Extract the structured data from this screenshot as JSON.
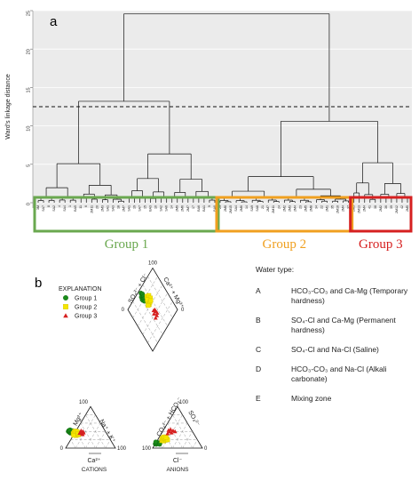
{
  "panel_a": {
    "label": "a",
    "ylabel": "Ward's linkage distance",
    "yticks": [
      "0",
      "5",
      "10",
      "15",
      "20",
      "25"
    ],
    "groups": [
      {
        "name": "Group 1",
        "color": "#6aa84f"
      },
      {
        "name": "Group 2",
        "color": "#f0a020"
      },
      {
        "name": "Group 3",
        "color": "#d62020"
      }
    ]
  },
  "panel_b": {
    "label": "b",
    "explanation": "EXPLANATION",
    "legend": [
      {
        "name": "Group 1",
        "marker": "circle",
        "color": "#1a8c1a"
      },
      {
        "name": "Group 2",
        "marker": "square",
        "color": "#f5e600"
      },
      {
        "name": "Group 3",
        "marker": "triangle",
        "color": "#d62020"
      }
    ],
    "cations_label": "CATIONS",
    "anions_label": "ANIONS",
    "tick_100": "100",
    "tick_0": "0",
    "axis_labels": {
      "mg": "Mg²⁺",
      "na_k": "Na⁺ + K⁺",
      "ca": "Ca²⁺",
      "co3_hco3": "CO₃²⁻ + HCO₃⁻",
      "so4": "SO₄²⁻",
      "cl": "Cl⁻",
      "so4_cl": "SO₄²⁻ + Cl⁻",
      "ca_mg": "Ca²⁺ + Mg²⁺"
    }
  },
  "water_type": {
    "title": "Water type:",
    "rows": [
      {
        "key": "A",
        "desc": "HCO₃-CO₃ and Ca-Mg (Temporary hardness)"
      },
      {
        "key": "B",
        "desc": "SO₄-Cl and Ca-Mg (Permanent hardness)"
      },
      {
        "key": "C",
        "desc": "SO₄-Cl and Na-Cl (Saline)"
      },
      {
        "key": "D",
        "desc": "HCO₃-CO₃ and Na-Cl (Alkali carbonate)"
      },
      {
        "key": "E",
        "desc": "Mixing zone"
      }
    ]
  },
  "chart_data": [
    {
      "type": "dendrogram",
      "title": "",
      "ylabel": "Ward's linkage distance",
      "ylim": [
        0,
        25
      ],
      "cut_height": 13,
      "leaves": [
        "3M",
        "SA7",
        "8",
        "SA2",
        "4",
        "SA4",
        "1",
        "BA5",
        "11",
        "6",
        "2M11",
        "20",
        "2M3",
        "SA1",
        "SA3",
        "18",
        "2M7",
        "SA1",
        "19",
        "SA7",
        "15",
        "BA3",
        "10",
        "SA2",
        "SA6",
        "14",
        "2M9",
        "2M6",
        "2M7",
        "17",
        "BA6",
        "BA1",
        "9",
        "BA8",
        "29",
        "2M8",
        "2M15",
        "SA4",
        "2M6",
        "14",
        "SA9",
        "SA8",
        "21",
        "2M7",
        "2M11",
        "24",
        "2M2",
        "2M3",
        "2M4",
        "23",
        "2M5",
        "2M8",
        "34",
        "22",
        "2M1",
        "35",
        "2M10",
        "2M4",
        "37",
        "2M3",
        "2M13",
        "2M4",
        "41",
        "38",
        "2M2",
        "36",
        "39",
        "2M12",
        "42",
        "2M5"
      ],
      "groups": [
        {
          "name": "Group 1",
          "range": [
            0,
            34
          ],
          "merge_height": 13.2
        },
        {
          "name": "Group 2",
          "range": [
            34,
            59
          ],
          "merge_height": 3.4
        },
        {
          "name": "Group 3",
          "range": [
            59,
            70
          ],
          "merge_height": 5.2
        }
      ],
      "root_height": 24.6
    },
    {
      "type": "piper",
      "title": "",
      "series": [
        {
          "name": "Group 1",
          "cation_points": [
            [
              0.05,
              0.4
            ],
            [
              0.07,
              0.38
            ],
            [
              0.06,
              0.42
            ],
            [
              0.09,
              0.36
            ],
            [
              0.08,
              0.39
            ],
            [
              0.1,
              0.41
            ],
            [
              0.11,
              0.37
            ],
            [
              0.12,
              0.4
            ],
            [
              0.07,
              0.43
            ],
            [
              0.09,
              0.44
            ],
            [
              0.13,
              0.38
            ],
            [
              0.14,
              0.42
            ]
          ],
          "anion_points": [
            [
              0.05,
              0.1
            ],
            [
              0.06,
              0.12
            ],
            [
              0.07,
              0.09
            ],
            [
              0.08,
              0.11
            ],
            [
              0.1,
              0.12
            ],
            [
              0.09,
              0.14
            ],
            [
              0.11,
              0.1
            ],
            [
              0.12,
              0.13
            ],
            [
              0.13,
              0.11
            ],
            [
              0.06,
              0.15
            ],
            [
              0.14,
              0.09
            ],
            [
              0.15,
              0.12
            ]
          ],
          "diamond_points": [
            [
              0.15,
              0.3
            ],
            [
              0.17,
              0.32
            ],
            [
              0.18,
              0.34
            ],
            [
              0.2,
              0.33
            ],
            [
              0.16,
              0.35
            ],
            [
              0.19,
              0.31
            ],
            [
              0.21,
              0.36
            ],
            [
              0.22,
              0.34
            ],
            [
              0.18,
              0.38
            ],
            [
              0.2,
              0.39
            ],
            [
              0.23,
              0.37
            ],
            [
              0.24,
              0.4
            ]
          ]
        },
        {
          "name": "Group 2",
          "cation_points": [
            [
              0.15,
              0.35
            ],
            [
              0.18,
              0.33
            ],
            [
              0.2,
              0.36
            ],
            [
              0.17,
              0.39
            ],
            [
              0.22,
              0.34
            ],
            [
              0.24,
              0.37
            ],
            [
              0.19,
              0.41
            ],
            [
              0.21,
              0.3
            ],
            [
              0.26,
              0.32
            ],
            [
              0.16,
              0.31
            ],
            [
              0.23,
              0.4
            ],
            [
              0.25,
              0.35
            ]
          ],
          "anion_points": [
            [
              0.18,
              0.18
            ],
            [
              0.2,
              0.2
            ],
            [
              0.22,
              0.17
            ],
            [
              0.24,
              0.21
            ],
            [
              0.19,
              0.23
            ],
            [
              0.26,
              0.19
            ],
            [
              0.21,
              0.25
            ],
            [
              0.25,
              0.24
            ],
            [
              0.28,
              0.22
            ],
            [
              0.23,
              0.27
            ],
            [
              0.3,
              0.2
            ],
            [
              0.27,
              0.26
            ]
          ],
          "diamond_points": [
            [
              0.3,
              0.34
            ],
            [
              0.33,
              0.36
            ],
            [
              0.35,
              0.33
            ],
            [
              0.32,
              0.4
            ],
            [
              0.37,
              0.38
            ],
            [
              0.34,
              0.42
            ],
            [
              0.39,
              0.36
            ],
            [
              0.36,
              0.44
            ],
            [
              0.31,
              0.38
            ],
            [
              0.38,
              0.41
            ],
            [
              0.4,
              0.39
            ],
            [
              0.33,
              0.45
            ]
          ]
        },
        {
          "name": "Group 3",
          "cation_points": [
            [
              0.3,
              0.38
            ],
            [
              0.33,
              0.35
            ],
            [
              0.31,
              0.42
            ],
            [
              0.35,
              0.4
            ],
            [
              0.28,
              0.36
            ],
            [
              0.34,
              0.33
            ],
            [
              0.36,
              0.37
            ]
          ],
          "anion_points": [
            [
              0.3,
              0.35
            ],
            [
              0.34,
              0.4
            ],
            [
              0.38,
              0.37
            ],
            [
              0.36,
              0.45
            ],
            [
              0.41,
              0.42
            ],
            [
              0.32,
              0.43
            ],
            [
              0.45,
              0.4
            ]
          ],
          "diamond_points": [
            [
              0.5,
              0.5
            ],
            [
              0.53,
              0.52
            ],
            [
              0.48,
              0.55
            ],
            [
              0.55,
              0.57
            ],
            [
              0.52,
              0.6
            ],
            [
              0.47,
              0.51
            ],
            [
              0.56,
              0.54
            ]
          ]
        }
      ]
    }
  ]
}
